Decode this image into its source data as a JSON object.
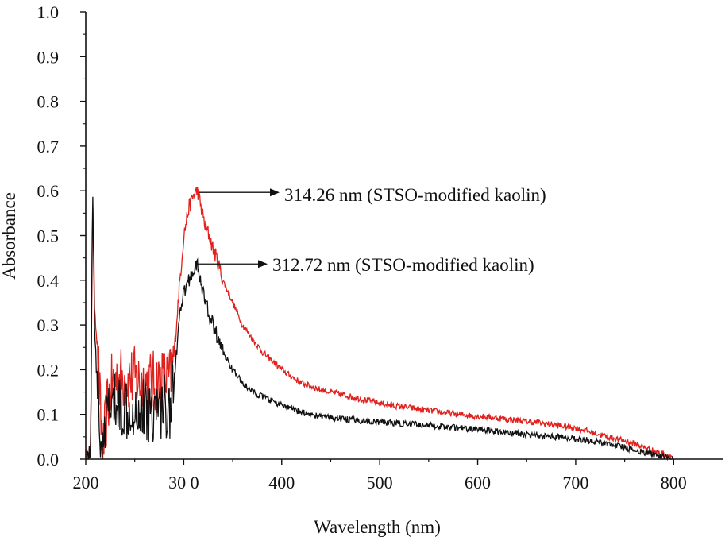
{
  "chart_data": {
    "type": "line",
    "title": "",
    "xlabel": "Wavelength (nm)",
    "ylabel": "Absorbance",
    "xlim": [
      200,
      850
    ],
    "ylim": [
      0,
      1.0
    ],
    "x_ticks": [
      200,
      300,
      400,
      500,
      600,
      700,
      800
    ],
    "x_tick_labels": [
      "200",
      "30 0",
      "400",
      "500",
      "600",
      "700",
      "800"
    ],
    "y_ticks": [
      0,
      0.1,
      0.2,
      0.3,
      0.4,
      0.5,
      0.6,
      0.7,
      0.8,
      0.9,
      1.0
    ],
    "y_tick_labels": [
      "0.0",
      "0.1",
      "0.2",
      "0.3",
      "0.4",
      "0.5",
      "0.6",
      "0.7",
      "0.8",
      "0.9",
      "1.0"
    ],
    "grid": false,
    "series": [
      {
        "name": "STSO-modified kaolin (red)",
        "color": "#e0211d",
        "x": [
          200,
          205,
          207,
          209,
          212,
          215,
          218,
          222,
          226,
          230,
          240,
          250,
          260,
          270,
          280,
          286,
          290,
          295,
          300,
          305,
          310,
          314.26,
          318,
          322,
          326,
          330,
          335,
          340,
          350,
          360,
          370,
          380,
          390,
          400,
          420,
          440,
          460,
          480,
          500,
          520,
          540,
          560,
          580,
          600,
          620,
          640,
          660,
          680,
          700,
          720,
          740,
          760,
          780,
          800
        ],
        "y": [
          0.0,
          0.02,
          0.6,
          0.35,
          0.25,
          0.1,
          0.02,
          0.12,
          0.16,
          0.18,
          0.18,
          0.18,
          0.17,
          0.17,
          0.18,
          0.18,
          0.23,
          0.37,
          0.5,
          0.56,
          0.59,
          0.6,
          0.56,
          0.52,
          0.5,
          0.47,
          0.44,
          0.4,
          0.35,
          0.3,
          0.27,
          0.24,
          0.22,
          0.2,
          0.17,
          0.155,
          0.145,
          0.135,
          0.125,
          0.118,
          0.112,
          0.106,
          0.1,
          0.096,
          0.092,
          0.087,
          0.082,
          0.076,
          0.07,
          0.058,
          0.046,
          0.035,
          0.018,
          0.005
        ]
      },
      {
        "name": "STSO-modified kaolin (black)",
        "color": "#111111",
        "x": [
          200,
          205,
          207,
          209,
          212,
          215,
          218,
          222,
          226,
          230,
          240,
          250,
          260,
          270,
          280,
          286,
          290,
          295,
          300,
          305,
          310,
          312.72,
          316,
          320,
          325,
          330,
          335,
          340,
          350,
          360,
          370,
          380,
          390,
          400,
          420,
          440,
          460,
          480,
          500,
          520,
          540,
          560,
          580,
          600,
          620,
          640,
          660,
          680,
          700,
          720,
          740,
          760,
          780,
          800
        ],
        "y": [
          0.0,
          0.02,
          0.63,
          0.3,
          0.15,
          0.05,
          0.0,
          0.1,
          0.12,
          0.12,
          0.12,
          0.12,
          0.11,
          0.11,
          0.12,
          0.12,
          0.17,
          0.3,
          0.37,
          0.4,
          0.42,
          0.44,
          0.41,
          0.37,
          0.33,
          0.3,
          0.27,
          0.24,
          0.2,
          0.17,
          0.15,
          0.14,
          0.13,
          0.12,
          0.105,
          0.095,
          0.09,
          0.086,
          0.083,
          0.08,
          0.077,
          0.074,
          0.07,
          0.066,
          0.062,
          0.058,
          0.054,
          0.05,
          0.046,
          0.04,
          0.032,
          0.02,
          0.01,
          0.0
        ]
      }
    ],
    "annotations": [
      {
        "text": "314.26 nm (STSO-modified kaolin)",
        "x": 314.26,
        "y": 0.6,
        "series": 0
      },
      {
        "text": "312.72 nm (STSO-modified kaolin)",
        "x": 312.72,
        "y": 0.44,
        "series": 1
      }
    ]
  }
}
